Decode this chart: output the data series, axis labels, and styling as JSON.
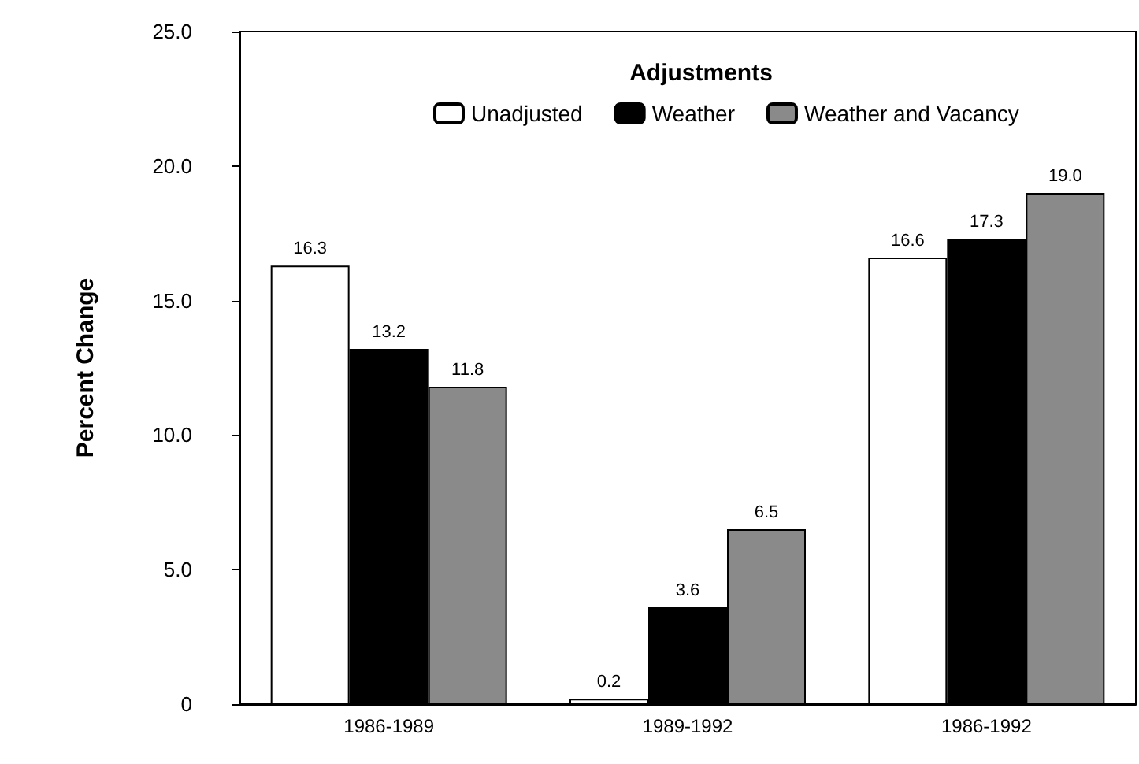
{
  "chart_data": {
    "type": "bar",
    "ylabel": "Percent Change",
    "legend_title": "Adjustments",
    "legend": "top",
    "categories": [
      "1986-1989",
      "1989-1992",
      "1986-1992"
    ],
    "series": [
      {
        "name": "Unadjusted",
        "color": "#ffffff",
        "values": [
          16.3,
          0.2,
          16.6
        ],
        "value_labels": [
          "16.3",
          "0.2",
          "16.6"
        ]
      },
      {
        "name": "Weather",
        "color": "#000000",
        "values": [
          13.2,
          3.6,
          17.3
        ],
        "value_labels": [
          "13.2",
          "3.6",
          "17.3"
        ]
      },
      {
        "name": "Weather and Vacancy",
        "color": "#8a8a8a",
        "values": [
          11.8,
          6.5,
          19.0
        ],
        "value_labels": [
          "11.8",
          "6.5",
          "19.0"
        ]
      }
    ],
    "ylim": [
      0,
      25
    ],
    "yticks": [
      0,
      {
        "value": 5,
        "label": "5.0"
      },
      {
        "value": 10,
        "label": "10.0"
      },
      {
        "value": 15,
        "label": "15.0"
      },
      {
        "value": 20,
        "label": "20.0"
      },
      {
        "value": 25,
        "label": "25.0"
      }
    ],
    "grid": false
  }
}
